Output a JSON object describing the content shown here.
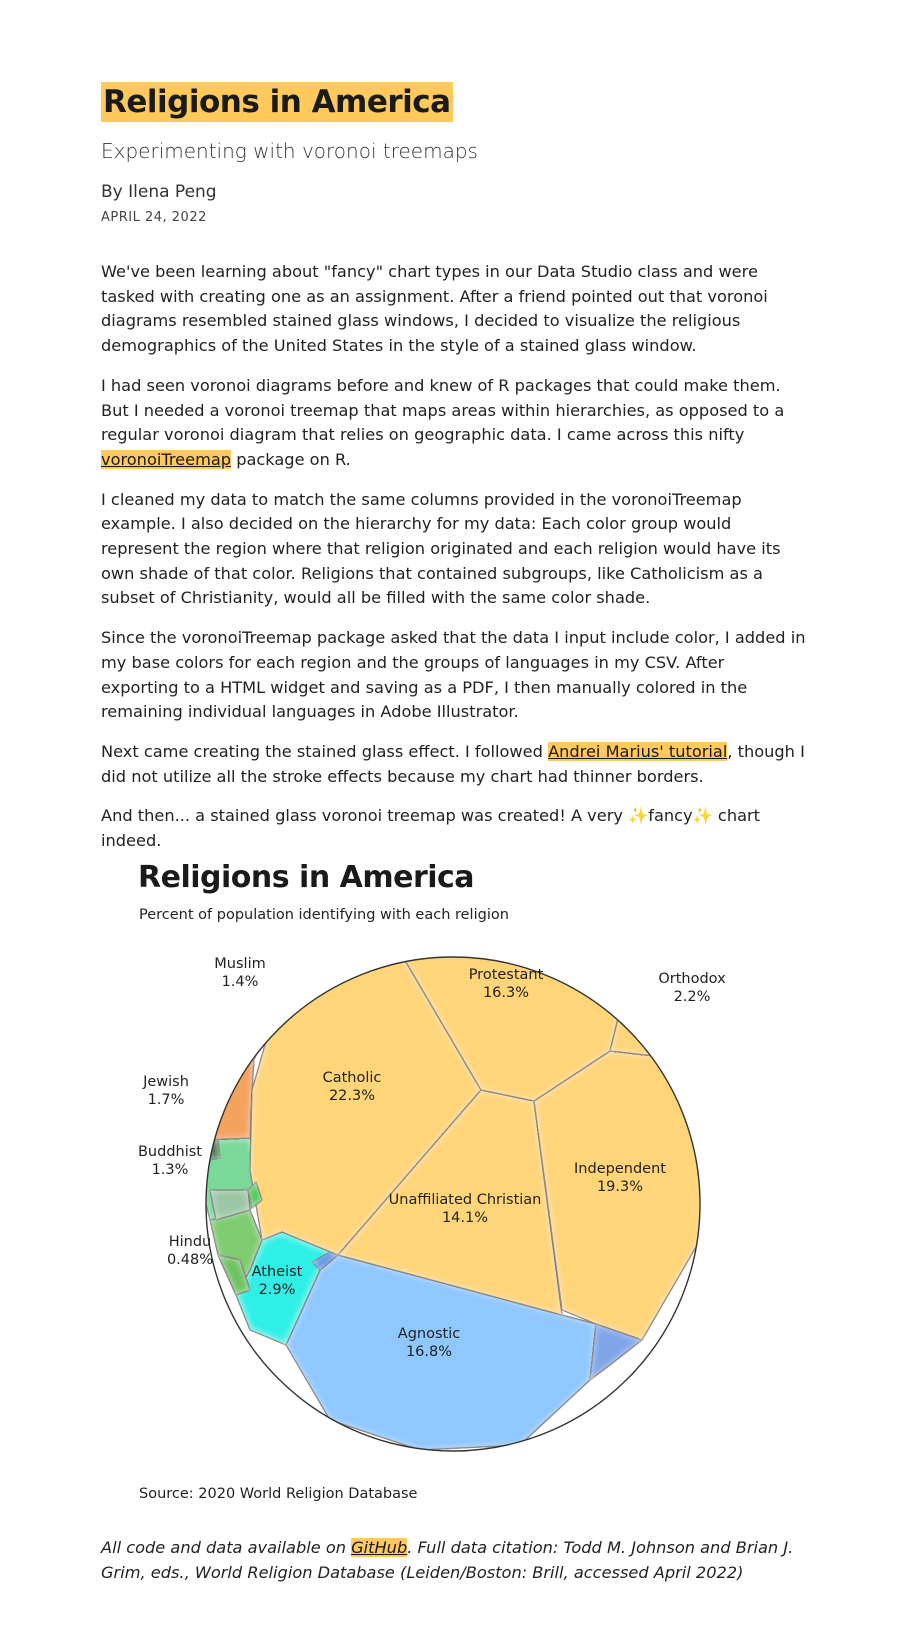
{
  "article": {
    "title": "Religions in America",
    "subtitle": "Experimenting with voronoi treemaps",
    "byline": "By Ilena Peng",
    "date": "APRIL 24, 2022",
    "p1": "We've been learning about \"fancy\" chart types in our Data Studio class and were tasked with creating one as an assignment. After a friend pointed out that voronoi diagrams resembled stained glass windows, I decided to visualize the religious demographics of the United States in the style of a stained glass window.",
    "p2_before": "I had seen voronoi diagrams before and knew of R packages that could make them. But I needed a voronoi treemap that maps areas within hierarchies, as opposed to a regular voronoi diagram that relies on geographic data. I came across this nifty ",
    "p2_link": "voronoiTreemap",
    "p2_after": " package on R.",
    "p3": "I cleaned my data to match the same columns provided in the voronoiTreemap example. I also decided on the hierarchy for my data: Each color group would represent the region where that religion originated and each religion would have its own shade of that color. Religions that contained subgroups, like Catholicism as a subset of Christianity, would all be filled with the same color shade.",
    "p4": "Since the voronoiTreemap package asked that the data I input include color, I added in my base colors for each region and the groups of languages in my CSV. After exporting to a HTML widget and saving as a PDF, I then manually colored in the remaining individual languages in Adobe Illustrator.",
    "p5_before": "Next came creating the stained glass effect. I followed ",
    "p5_link": "Andrei Marius' tutorial",
    "p5_after": ", though I did not utilize all the stroke effects because my chart had thinner borders.",
    "p6": "And then... a stained glass voronoi treemap was created! A very ✨fancy✨ chart indeed."
  },
  "figure": {
    "title": "Religions in America",
    "subtitle": "Percent of population identifying with each religion",
    "source": "Source: 2020 World Religion Database"
  },
  "chart_data": {
    "type": "voronoi-treemap",
    "title": "Religions in America",
    "subtitle": "Percent of population identifying with each religion",
    "cells": [
      {
        "name": "Catholic",
        "value": 22.3,
        "value_label": "22.3%",
        "color": "#ffd57a"
      },
      {
        "name": "Independent",
        "value": 19.3,
        "value_label": "19.3%",
        "color": "#ffd57a"
      },
      {
        "name": "Agnostic",
        "value": 16.8,
        "value_label": "16.8%",
        "color": "#8ec8ff"
      },
      {
        "name": "Protestant",
        "value": 16.3,
        "value_label": "16.3%",
        "color": "#ffd57a"
      },
      {
        "name": "Unaffiliated Christian",
        "value": 14.1,
        "value_label": "14.1%",
        "color": "#ffd57a"
      },
      {
        "name": "Atheist",
        "value": 2.9,
        "value_label": "2.9%",
        "color": "#2ef0e6"
      },
      {
        "name": "Orthodox",
        "value": 2.2,
        "value_label": "2.2%",
        "color": "#ffd57a"
      },
      {
        "name": "Jewish",
        "value": 1.7,
        "value_label": "1.7%",
        "color": "#f4a25c"
      },
      {
        "name": "Muslim",
        "value": 1.4,
        "value_label": "1.4%",
        "color": "#f48a74"
      },
      {
        "name": "Buddhist",
        "value": 1.3,
        "value_label": "1.3%",
        "color": "#7ad99a"
      },
      {
        "name": "Hindu",
        "value": 0.48,
        "value_label": "0.48%",
        "color": "#7dcc6e"
      }
    ],
    "source": "Source: 2020 World Religion Database"
  },
  "footnote": {
    "before": "All code and data available on ",
    "link": "GitHub",
    "after": ". Full data citation: Todd M. Johnson and Brian J. Grim, eds., World Religion Database (Leiden/Boston: Brill, accessed April 2022)"
  }
}
